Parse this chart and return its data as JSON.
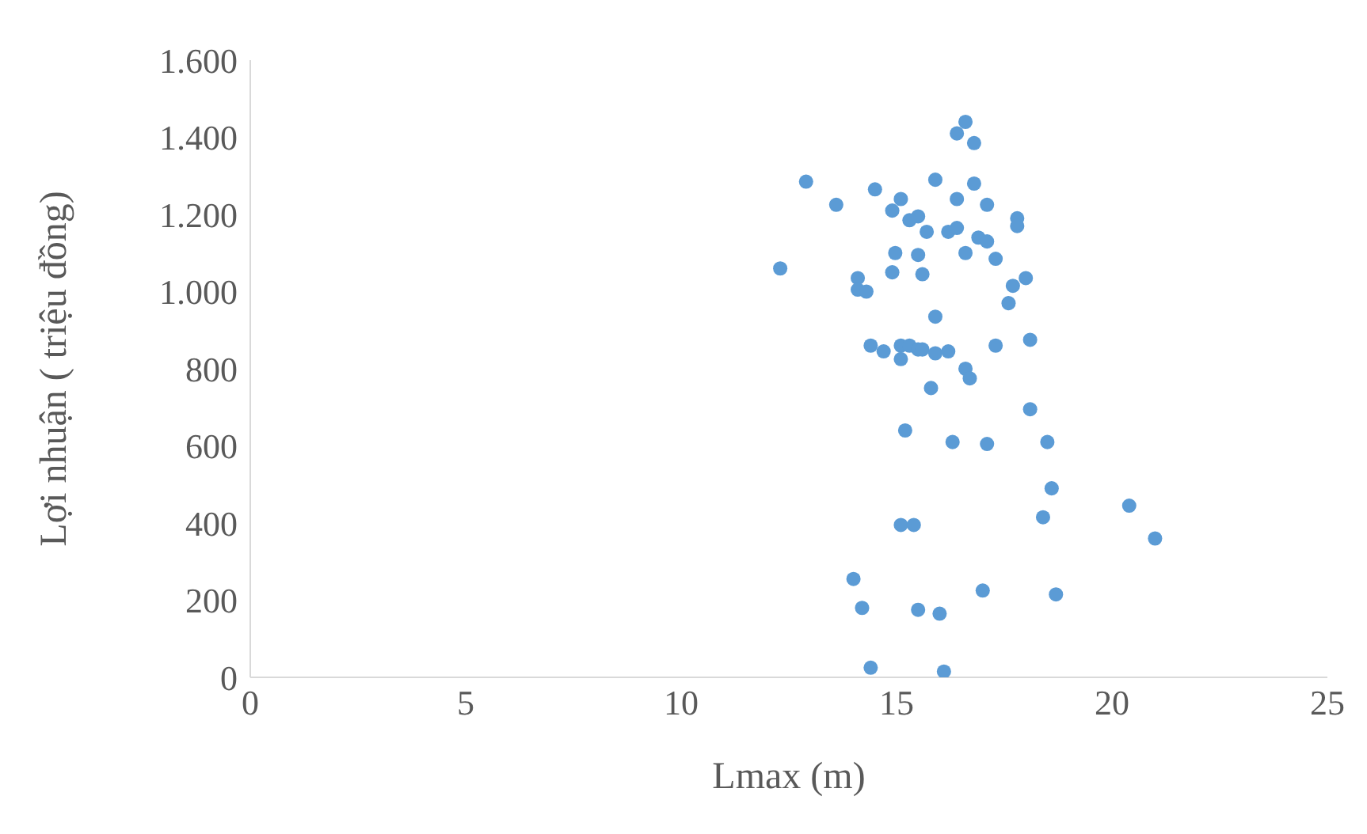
{
  "chart_data": {
    "type": "scatter",
    "xlabel": "Lmax (m)",
    "ylabel": "Lợi nhuận ( triệu đồng)",
    "marker": "circle",
    "grid": false,
    "xlim": [
      0,
      25
    ],
    "xticks": [
      0,
      5,
      10,
      15,
      20,
      25
    ],
    "ylim": [
      0,
      1600
    ],
    "yticks": [
      0,
      200,
      400,
      600,
      800,
      {
        "value": 1000,
        "label": "1.000"
      },
      {
        "value": 1200,
        "label": "1.200"
      },
      {
        "value": 1400,
        "label": "1.400"
      },
      {
        "value": 1600,
        "label": "1.600"
      }
    ],
    "series": [
      {
        "color": "#5b9bd5",
        "x": [
          16.6,
          16.4,
          16.8,
          12.9,
          14.5,
          15.9,
          16.8,
          13.6,
          15.1,
          16.4,
          17.1,
          14.9,
          15.5,
          15.3,
          17.8,
          17.8,
          15.7,
          16.2,
          16.4,
          16.9,
          17.1,
          14.97,
          15.5,
          16.6,
          17.3,
          12.3,
          18.0,
          14.9,
          15.6,
          14.1,
          14.1,
          14.3,
          17.7,
          17.6,
          15.9,
          14.4,
          14.7,
          15.1,
          15.3,
          15.5,
          15.6,
          15.1,
          15.9,
          16.2,
          17.3,
          18.1,
          16.6,
          16.7,
          15.8,
          18.1,
          16.3,
          17.1,
          18.5,
          15.2,
          18.6,
          20.4,
          21.0,
          18.4,
          15.1,
          15.4,
          14.0,
          14.2,
          15.5,
          16.0,
          17.0,
          18.7,
          14.4,
          16.1
        ],
        "values": [
          1440,
          1410,
          1385,
          1285,
          1265,
          1290,
          1280,
          1225,
          1240,
          1240,
          1225,
          1210,
          1195,
          1185,
          1190,
          1170,
          1155,
          1155,
          1165,
          1140,
          1130,
          1100,
          1095,
          1100,
          1085,
          1060,
          1035,
          1050,
          1045,
          1035,
          1005,
          1000,
          1015,
          970,
          935,
          860,
          845,
          860,
          860,
          850,
          850,
          825,
          840,
          845,
          860,
          875,
          800,
          775,
          750,
          695,
          610,
          605,
          610,
          640,
          490,
          445,
          360,
          415,
          395,
          395,
          255,
          180,
          175,
          165,
          225,
          215,
          25,
          15
        ]
      }
    ]
  }
}
